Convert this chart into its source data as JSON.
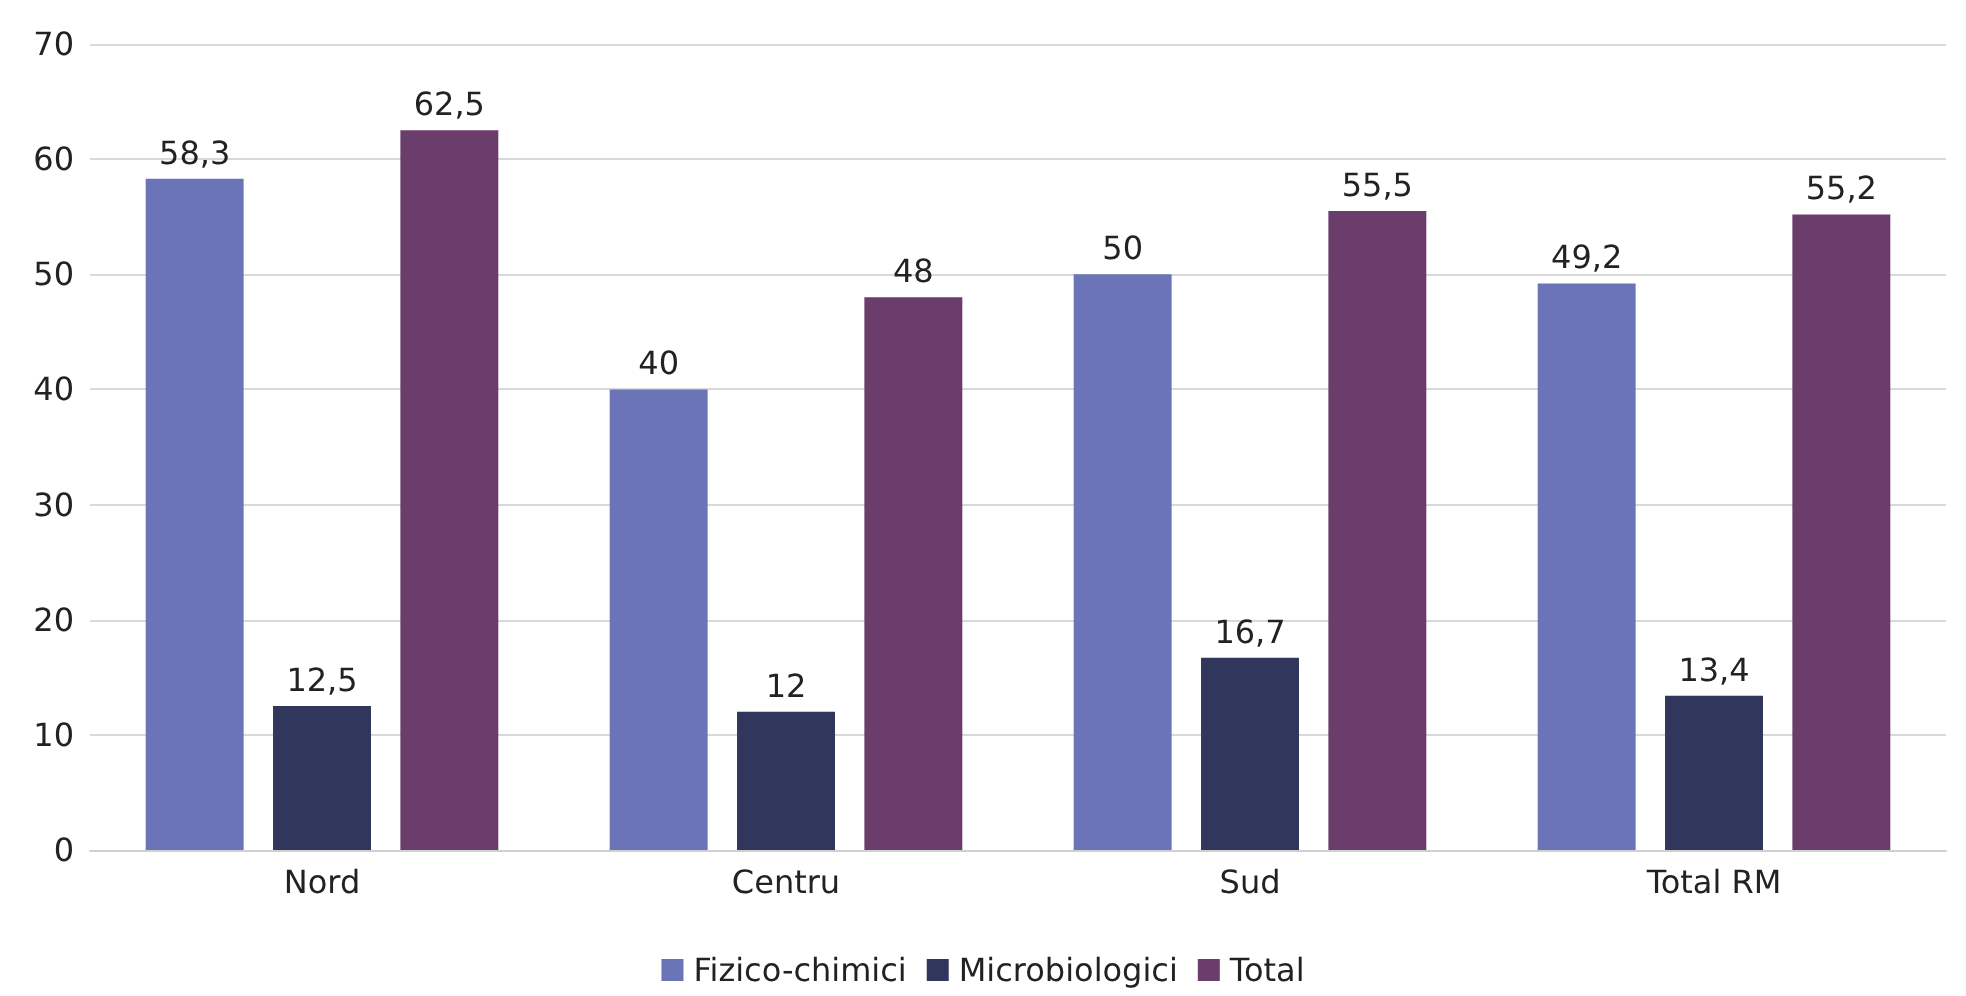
{
  "chart_data": {
    "type": "bar",
    "categories": [
      "Nord",
      "Centru",
      "Sud",
      "Total RM"
    ],
    "series": [
      {
        "name": "Fizico-chimici",
        "color": "#6b74b6",
        "values": [
          58.3,
          40,
          50,
          49.2
        ],
        "value_labels": [
          "58,3",
          "40",
          "50",
          "49,2"
        ]
      },
      {
        "name": "Microbiologici",
        "color": "#31365d",
        "values": [
          12.5,
          12,
          16.7,
          13.4
        ],
        "value_labels": [
          "12,5",
          "12",
          "16,7",
          "13,4"
        ]
      },
      {
        "name": "Total",
        "color": "#6b3d6d",
        "values": [
          62.5,
          48,
          55.5,
          55.2
        ],
        "value_labels": [
          "62,5",
          "48",
          "55,5",
          "55,2"
        ]
      }
    ],
    "ylim": [
      0,
      70
    ],
    "yticks": [
      0,
      10,
      20,
      30,
      40,
      50,
      60,
      70
    ],
    "grid": "y",
    "legend": "bottom"
  }
}
